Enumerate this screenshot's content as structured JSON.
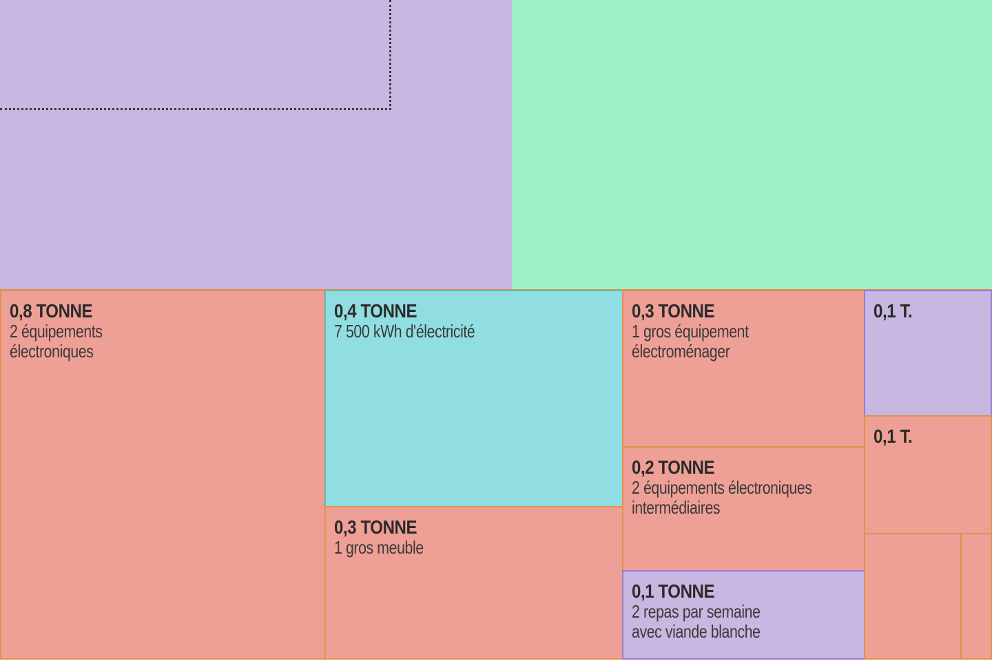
{
  "chart_data": {
    "type": "treemap",
    "title": "",
    "colors": {
      "purple": "#c8b7e0",
      "green": "#9eeec6",
      "cyan": "#91dee2",
      "salmon": "#efa096",
      "salmon_border": "#e0914f",
      "purple_border": "#9c7bd0"
    },
    "tiles": [
      {
        "id": "top-purple",
        "color": "purple",
        "value": "",
        "label": ""
      },
      {
        "id": "top-green",
        "color": "green",
        "value": "",
        "label": ""
      },
      {
        "id": "electronics-2",
        "color": "salmon",
        "value": "0,8 TONNE",
        "label": "2 équipements\nélectroniques"
      },
      {
        "id": "electricity",
        "color": "cyan",
        "value": "0,4 TONNE",
        "label": "7 500 kWh d'électricité"
      },
      {
        "id": "furniture",
        "color": "salmon",
        "value": "0,3 TONNE",
        "label": "1 gros meuble"
      },
      {
        "id": "appliance",
        "color": "salmon",
        "value": "0,3 TONNE",
        "label": "1 gros équipement\nélectroménager"
      },
      {
        "id": "electronics-intermediate",
        "color": "salmon",
        "value": "0,2 TONNE",
        "label": "2 équipements électroniques\nintermédiaires"
      },
      {
        "id": "white-meat",
        "color": "purple",
        "value": "0,1 TONNE",
        "label": "2 repas par semaine\navec viande blanche"
      },
      {
        "id": "small-purple",
        "color": "purple",
        "value": "0,1 T.",
        "label": ""
      },
      {
        "id": "small-salmon",
        "color": "salmon",
        "value": "0,1 T.",
        "label": ""
      },
      {
        "id": "tiny-salmon-1",
        "color": "salmon",
        "value": "",
        "label": ""
      },
      {
        "id": "tiny-salmon-2",
        "color": "salmon",
        "value": "",
        "label": ""
      }
    ]
  }
}
